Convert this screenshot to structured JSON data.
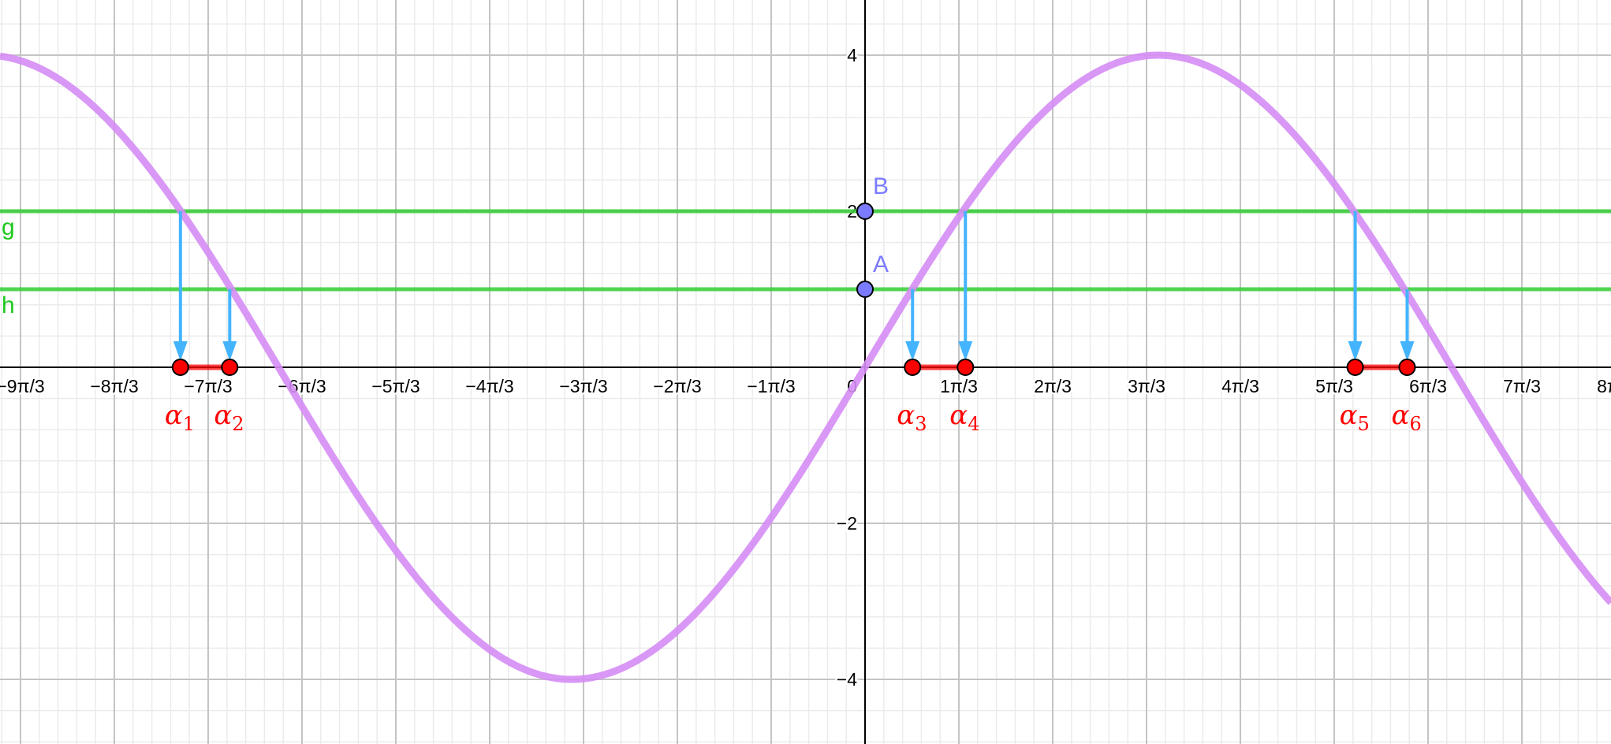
{
  "chart_data": {
    "type": "line",
    "function": {
      "amplitude": 4,
      "angular_frequency": 0.48,
      "color": "#d58cf5"
    },
    "x_range": [
      -9.42,
      8.6
    ],
    "y_range": [
      -4.83,
      4.7
    ],
    "grid": true,
    "x_tick_labels": [
      {
        "value": -9,
        "label": "−9π/3"
      },
      {
        "value": -8,
        "label": "−8π/3"
      },
      {
        "value": -7,
        "label": "−7π/3"
      },
      {
        "value": -6,
        "label": "−6π/3"
      },
      {
        "value": -5,
        "label": "−5π/3"
      },
      {
        "value": -4,
        "label": "−4π/3"
      },
      {
        "value": -3,
        "label": "−3π/3"
      },
      {
        "value": -2,
        "label": "−2π/3"
      },
      {
        "value": -1,
        "label": "−1π/3"
      },
      {
        "value": 0,
        "label": "0"
      },
      {
        "value": 1,
        "label": "1π/3"
      },
      {
        "value": 2,
        "label": "2π/3"
      },
      {
        "value": 3,
        "label": "3π/3"
      },
      {
        "value": 4,
        "label": "4π/3"
      },
      {
        "value": 5,
        "label": "5π/3"
      },
      {
        "value": 6,
        "label": "6π/3"
      },
      {
        "value": 7,
        "label": "7π/3"
      },
      {
        "value": 8,
        "label": "8π/3"
      }
    ],
    "y_tick_labels": [
      {
        "value": 4,
        "label": "4"
      },
      {
        "value": 2,
        "label": "2"
      },
      {
        "value": -2,
        "label": "−2"
      },
      {
        "value": -4,
        "label": "−4"
      }
    ],
    "lines": [
      {
        "name": "g",
        "y": 2,
        "color": "#33cc33"
      },
      {
        "name": "h",
        "y": 1,
        "color": "#33cc33"
      }
    ],
    "points": [
      {
        "name": "B",
        "x": 0,
        "y": 2,
        "color": "#7b7bff"
      },
      {
        "name": "A",
        "x": 0,
        "y": 1,
        "color": "#7b7bff"
      }
    ],
    "roots": [
      {
        "name": "α",
        "sub": "1",
        "x": -7.64,
        "from_y": 2
      },
      {
        "name": "α",
        "sub": "2",
        "x": -7.09,
        "from_y": 1
      },
      {
        "name": "α",
        "sub": "3",
        "x": 0.53,
        "from_y": 1
      },
      {
        "name": "α",
        "sub": "4",
        "x": 1.12,
        "from_y": 2
      },
      {
        "name": "α",
        "sub": "5",
        "x": 5.47,
        "from_y": 2
      },
      {
        "name": "α",
        "sub": "6",
        "x": 6.05,
        "from_y": 1
      }
    ],
    "intervals": [
      [
        0,
        1
      ],
      [
        2,
        3
      ],
      [
        4,
        5
      ]
    ],
    "arrow_color": "#44b4ff",
    "root_color": "#ff0000"
  }
}
